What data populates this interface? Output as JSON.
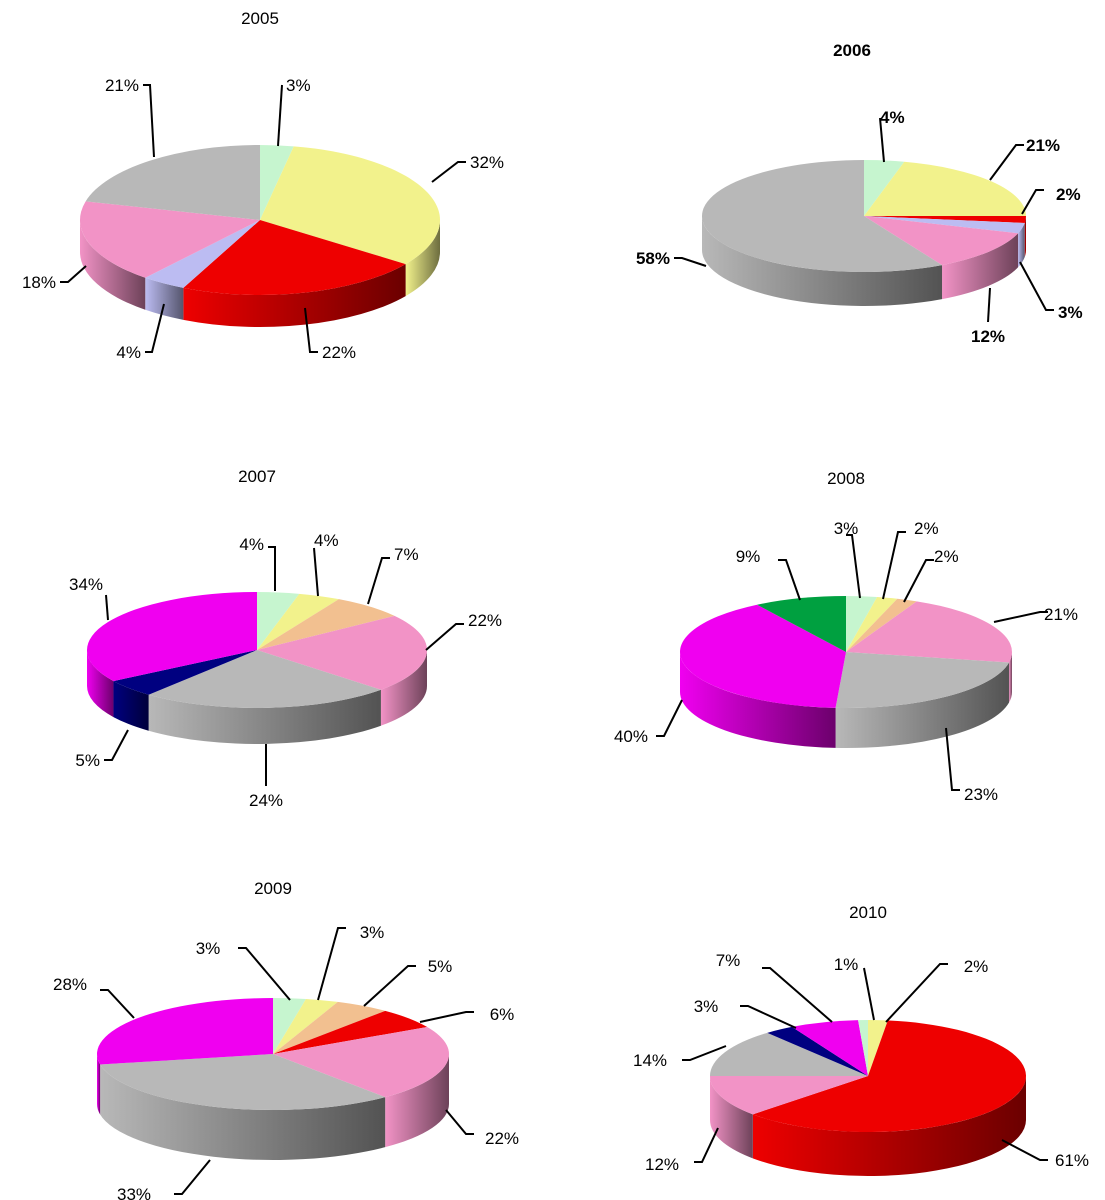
{
  "chart_data": [
    {
      "type": "pie",
      "title": "2005",
      "slices": [
        {
          "label": "3%",
          "value": 3,
          "color": "#c6f5cf"
        },
        {
          "label": "32%",
          "value": 32,
          "color": "#f2f28c"
        },
        {
          "label": "22%",
          "value": 22,
          "color": "#ee0000"
        },
        {
          "label": "4%",
          "value": 4,
          "color": "#bcbcf2"
        },
        {
          "label": "18%",
          "value": 18,
          "color": "#f293c6"
        },
        {
          "label": "21%",
          "value": 21,
          "color": "#b8b8b8"
        }
      ]
    },
    {
      "type": "pie",
      "title": "2006",
      "slices": [
        {
          "label": "4%",
          "value": 4,
          "color": "#c6f5cf"
        },
        {
          "label": "21%",
          "value": 21,
          "color": "#f2f28c"
        },
        {
          "label": "2%",
          "value": 2,
          "color": "#ee0000"
        },
        {
          "label": "3%",
          "value": 3,
          "color": "#bcbcf2"
        },
        {
          "label": "12%",
          "value": 12,
          "color": "#f293c6"
        },
        {
          "label": "58%",
          "value": 58,
          "color": "#b8b8b8"
        }
      ]
    },
    {
      "type": "pie",
      "title": "2007",
      "slices": [
        {
          "label": "4%",
          "value": 4,
          "color": "#c6f5cf"
        },
        {
          "label": "4%",
          "value": 4,
          "color": "#f2f28c"
        },
        {
          "label": "7%",
          "value": 7,
          "color": "#f2c090"
        },
        {
          "label": "22%",
          "value": 22,
          "color": "#f293c6"
        },
        {
          "label": "24%",
          "value": 24,
          "color": "#b8b8b8"
        },
        {
          "label": "5%",
          "value": 5,
          "color": "#000080"
        },
        {
          "label": "34%",
          "value": 34,
          "color": "#f000f0"
        }
      ]
    },
    {
      "type": "pie",
      "title": "2008",
      "slices": [
        {
          "label": "3%",
          "value": 3,
          "color": "#c6f5cf"
        },
        {
          "label": "2%",
          "value": 2,
          "color": "#f2f28c"
        },
        {
          "label": "2%",
          "value": 2,
          "color": "#f2c090"
        },
        {
          "label": "21%",
          "value": 21,
          "color": "#f293c6"
        },
        {
          "label": "23%",
          "value": 23,
          "color": "#b8b8b8"
        },
        {
          "label": "40%",
          "value": 40,
          "color": "#f000f0"
        },
        {
          "label": "9%",
          "value": 9,
          "color": "#00a040"
        }
      ]
    },
    {
      "type": "pie",
      "title": "2009",
      "slices": [
        {
          "label": "3%",
          "value": 3,
          "color": "#c6f5cf"
        },
        {
          "label": "3%",
          "value": 3,
          "color": "#f2f28c"
        },
        {
          "label": "5%",
          "value": 5,
          "color": "#f2c090"
        },
        {
          "label": "6%",
          "value": 6,
          "color": "#ee0000"
        },
        {
          "label": "22%",
          "value": 22,
          "color": "#f293c6"
        },
        {
          "label": "33%",
          "value": 33,
          "color": "#b8b8b8"
        },
        {
          "label": "28%",
          "value": 28,
          "color": "#f000f0"
        }
      ]
    },
    {
      "type": "pie",
      "title": "2010",
      "slices": [
        {
          "label": "2%",
          "value": 2,
          "color": "#f2f28c"
        },
        {
          "label": "61%",
          "value": 61,
          "color": "#ee0000"
        },
        {
          "label": "12%",
          "value": 12,
          "color": "#f293c6"
        },
        {
          "label": "14%",
          "value": 14,
          "color": "#b8b8b8"
        },
        {
          "label": "3%",
          "value": 3,
          "color": "#000080"
        },
        {
          "label": "7%",
          "value": 7,
          "color": "#f000f0"
        },
        {
          "label": "1%",
          "value": 1,
          "color": "#c6f5cf"
        }
      ]
    }
  ]
}
